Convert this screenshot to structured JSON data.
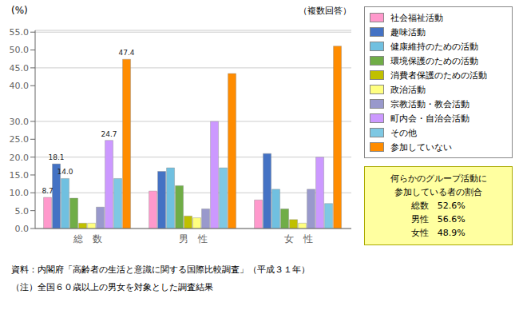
{
  "chart_data": {
    "type": "bar",
    "y_label": "(%)",
    "categories": [
      "総　数",
      "男　性",
      "女　性"
    ],
    "series": [
      {
        "name": "社会福祉活動",
        "color": "#FF99CC",
        "values": [
          8.7,
          10.5,
          8.0
        ],
        "value_labels": [
          "8.7",
          null,
          null
        ]
      },
      {
        "name": "趣味活動",
        "color": "#4472C4",
        "values": [
          18.1,
          16.0,
          21.0
        ],
        "value_labels": [
          "18.1",
          null,
          null
        ]
      },
      {
        "name": "健康維持のための活動",
        "color": "#70C0E0",
        "values": [
          14.0,
          17.0,
          11.0
        ],
        "value_labels": [
          "14.0",
          null,
          null
        ]
      },
      {
        "name": "環境保護のための活動",
        "color": "#70AD47",
        "values": [
          8.5,
          12.0,
          5.5
        ]
      },
      {
        "name": "消費者保護のための活動",
        "color": "#C0C000",
        "values": [
          1.5,
          3.5,
          2.5
        ]
      },
      {
        "name": "政治活動",
        "color": "#FFFF80",
        "values": [
          1.5,
          3.0,
          1.5
        ]
      },
      {
        "name": "宗教活動・教会活動",
        "color": "#9999CC",
        "values": [
          6.0,
          5.5,
          11.0
        ]
      },
      {
        "name": "町内会・自治会活動",
        "color": "#CC99FF",
        "values": [
          24.7,
          30.0,
          20.0
        ],
        "value_labels": [
          "24.7",
          null,
          null
        ]
      },
      {
        "name": "その他",
        "color": "#7EC8E3",
        "values": [
          14.0,
          17.0,
          7.0
        ]
      },
      {
        "name": "参加していない",
        "color": "#FF8C00",
        "values": [
          47.4,
          43.4,
          51.1
        ],
        "value_labels": [
          "47.4",
          null,
          null
        ]
      }
    ],
    "ylim": [
      0,
      55.5
    ],
    "yticks": [
      {
        "value": 0,
        "label": "0.0"
      },
      {
        "value": 5,
        "label": "5.0"
      },
      {
        "value": 10,
        "label": "10.0"
      },
      {
        "value": 15,
        "label": "15.0"
      },
      {
        "value": 20,
        "label": "20.0"
      },
      {
        "value": 25,
        "label": "25.0"
      },
      {
        "value": 30,
        "label": "30.0"
      },
      {
        "value": 40,
        "label": "40.0"
      },
      {
        "value": 45,
        "label": "45.0"
      },
      {
        "value": 50,
        "label": "50.0"
      },
      {
        "value": 55,
        "label": "55.0"
      }
    ],
    "grid": true,
    "legend": "upper right",
    "annotations": [
      "（複数回答）",
      "何らかのグループ活動に",
      "参加している者の割合",
      "総数   52.6%",
      "男性   56.6%",
      "女性   48.9%",
      "資料：内閣府「高齢者の生活と意識に関する国際比較調査」（平成３１年）",
      "（注）全国６０歳以上の男女を対象とした調査結果"
    ]
  }
}
